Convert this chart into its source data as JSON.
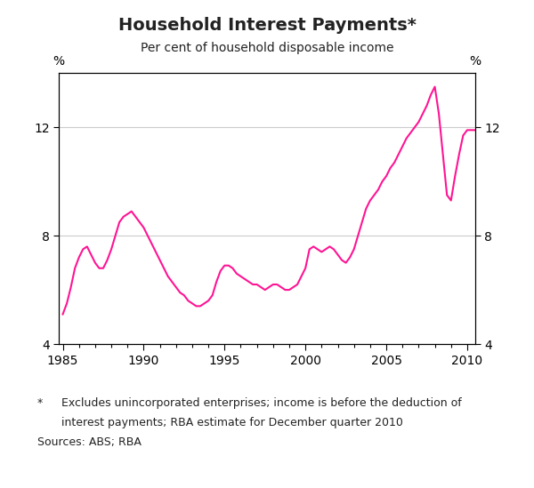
{
  "title": "Household Interest Payments*",
  "subtitle": "Per cent of household disposable income",
  "ylabel_left": "%",
  "ylabel_right": "%",
  "footnote_star": "*",
  "footnote_text1": "Excludes unincorporated enterprises; income is before the deduction of",
  "footnote_text2": "interest payments; RBA estimate for December quarter 2010",
  "footnote_text3": "Sources: ABS; RBA",
  "line_color": "#FF1493",
  "xlim": [
    1984.75,
    2010.5
  ],
  "ylim": [
    4,
    14
  ],
  "yticks": [
    4,
    8,
    12
  ],
  "xticks": [
    1985,
    1990,
    1995,
    2000,
    2005,
    2010
  ],
  "grid_color": "#cccccc",
  "data": {
    "x": [
      1985.0,
      1985.25,
      1985.5,
      1985.75,
      1986.0,
      1986.25,
      1986.5,
      1986.75,
      1987.0,
      1987.25,
      1987.5,
      1987.75,
      1988.0,
      1988.25,
      1988.5,
      1988.75,
      1989.0,
      1989.25,
      1989.5,
      1989.75,
      1990.0,
      1990.25,
      1990.5,
      1990.75,
      1991.0,
      1991.25,
      1991.5,
      1991.75,
      1992.0,
      1992.25,
      1992.5,
      1992.75,
      1993.0,
      1993.25,
      1993.5,
      1993.75,
      1994.0,
      1994.25,
      1994.5,
      1994.75,
      1995.0,
      1995.25,
      1995.5,
      1995.75,
      1996.0,
      1996.25,
      1996.5,
      1996.75,
      1997.0,
      1997.25,
      1997.5,
      1997.75,
      1998.0,
      1998.25,
      1998.5,
      1998.75,
      1999.0,
      1999.25,
      1999.5,
      1999.75,
      2000.0,
      2000.25,
      2000.5,
      2000.75,
      2001.0,
      2001.25,
      2001.5,
      2001.75,
      2002.0,
      2002.25,
      2002.5,
      2002.75,
      2003.0,
      2003.25,
      2003.5,
      2003.75,
      2004.0,
      2004.25,
      2004.5,
      2004.75,
      2005.0,
      2005.25,
      2005.5,
      2005.75,
      2006.0,
      2006.25,
      2006.5,
      2006.75,
      2007.0,
      2007.25,
      2007.5,
      2007.75,
      2008.0,
      2008.25,
      2008.5,
      2008.75,
      2009.0,
      2009.25,
      2009.5,
      2009.75,
      2010.0,
      2010.25,
      2010.5
    ],
    "y": [
      5.1,
      5.5,
      6.1,
      6.8,
      7.2,
      7.5,
      7.6,
      7.3,
      7.0,
      6.8,
      6.8,
      7.1,
      7.5,
      8.0,
      8.5,
      8.7,
      8.8,
      8.9,
      8.7,
      8.5,
      8.3,
      8.0,
      7.7,
      7.4,
      7.1,
      6.8,
      6.5,
      6.3,
      6.1,
      5.9,
      5.8,
      5.6,
      5.5,
      5.4,
      5.4,
      5.5,
      5.6,
      5.8,
      6.3,
      6.7,
      6.9,
      6.9,
      6.8,
      6.6,
      6.5,
      6.4,
      6.3,
      6.2,
      6.2,
      6.1,
      6.0,
      6.1,
      6.2,
      6.2,
      6.1,
      6.0,
      6.0,
      6.1,
      6.2,
      6.5,
      6.8,
      7.5,
      7.6,
      7.5,
      7.4,
      7.5,
      7.6,
      7.5,
      7.3,
      7.1,
      7.0,
      7.2,
      7.5,
      8.0,
      8.5,
      9.0,
      9.3,
      9.5,
      9.7,
      10.0,
      10.2,
      10.5,
      10.7,
      11.0,
      11.3,
      11.6,
      11.8,
      12.0,
      12.2,
      12.5,
      12.8,
      13.2,
      13.5,
      12.5,
      11.0,
      9.5,
      9.3,
      10.2,
      11.0,
      11.7,
      11.9,
      11.9,
      11.9
    ]
  }
}
